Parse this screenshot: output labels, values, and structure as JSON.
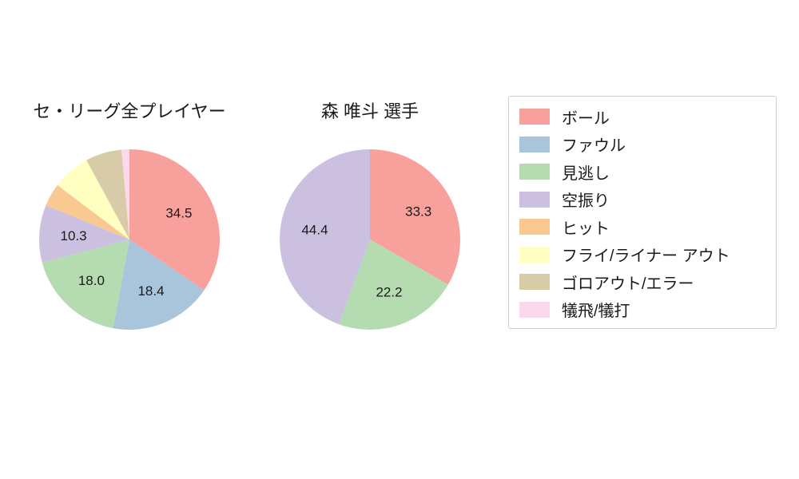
{
  "legend": {
    "items": [
      {
        "label": "ボール",
        "color": "#f8a19c"
      },
      {
        "label": "ファウル",
        "color": "#a9c5dc"
      },
      {
        "label": "見逃し",
        "color": "#b4dcb0"
      },
      {
        "label": "空振り",
        "color": "#ccc0e0"
      },
      {
        "label": "ヒット",
        "color": "#fac991"
      },
      {
        "label": "フライ/ライナー アウト",
        "color": "#ffffc2"
      },
      {
        "label": "ゴロアウト/エラー",
        "color": "#d8cca8"
      },
      {
        "label": "犠飛/犠打",
        "color": "#fbd8eb"
      }
    ]
  },
  "chart_data": [
    {
      "type": "pie",
      "title": "セ・リーグ全プレイヤー",
      "categories": [
        "ボール",
        "ファウル",
        "見逃し",
        "空振り",
        "ヒット",
        "フライ/ライナー アウト",
        "ゴロアウト/エラー",
        "犠飛/犠打"
      ],
      "values": [
        34.5,
        18.4,
        18.0,
        10.3,
        4.1,
        6.8,
        6.5,
        1.4
      ],
      "value_labels": [
        "34.5",
        "18.4",
        "18.0",
        "10.3",
        "",
        "",
        "",
        ""
      ],
      "colors": [
        "#f8a19c",
        "#a9c5dc",
        "#b4dcb0",
        "#ccc0e0",
        "#fac991",
        "#ffffc2",
        "#d8cca8",
        "#fbd8eb"
      ],
      "start_angle": "top",
      "direction": "clockwise"
    },
    {
      "type": "pie",
      "title": "森 唯斗 選手",
      "categories": [
        "ボール",
        "見逃し",
        "空振り"
      ],
      "values": [
        33.3,
        22.2,
        44.4
      ],
      "value_labels": [
        "33.3",
        "22.2",
        "44.4"
      ],
      "colors": [
        "#f8a19c",
        "#b4dcb0",
        "#ccc0e0"
      ],
      "start_angle": "top",
      "direction": "clockwise"
    }
  ]
}
